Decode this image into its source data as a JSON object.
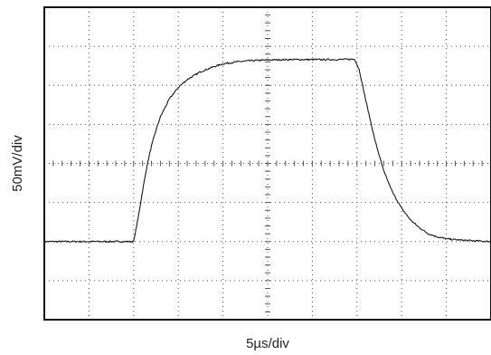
{
  "chart_data": {
    "type": "line",
    "xlabel": "5µs/div",
    "ylabel": "50mV/div",
    "grid": true,
    "grid_style": "dotted divisions with minor ticks on center axes",
    "x_divisions": 10,
    "y_divisions": 8,
    "xlim": [
      0,
      10
    ],
    "ylim": [
      -4,
      4
    ],
    "colors": {
      "trace": "#1a1a1a",
      "grid": "#555555",
      "frame": "#111111"
    },
    "series": [
      {
        "values_note": "x in divisions (5µs each), y in divisions (50mV each) from center",
        "x": [
          0,
          2.0,
          2.1,
          2.2,
          2.3,
          2.4,
          2.5,
          2.6,
          2.8,
          3.0,
          3.2,
          3.5,
          3.8,
          4.0,
          4.3,
          4.6,
          5.0,
          5.5,
          6.0,
          6.5,
          6.95,
          7.05,
          7.2,
          7.4,
          7.6,
          7.8,
          8.0,
          8.2,
          8.4,
          8.6,
          8.8,
          9.0,
          9.3,
          9.6,
          10.0
        ],
        "y": [
          -2.0,
          -2.0,
          -1.4,
          -0.7,
          -0.05,
          0.45,
          0.85,
          1.2,
          1.65,
          1.95,
          2.15,
          2.35,
          2.48,
          2.55,
          2.6,
          2.63,
          2.65,
          2.66,
          2.66,
          2.66,
          2.67,
          2.4,
          1.6,
          0.6,
          -0.2,
          -0.75,
          -1.15,
          -1.45,
          -1.65,
          -1.8,
          -1.88,
          -1.93,
          -1.96,
          -1.98,
          -2.0
        ]
      }
    ]
  }
}
